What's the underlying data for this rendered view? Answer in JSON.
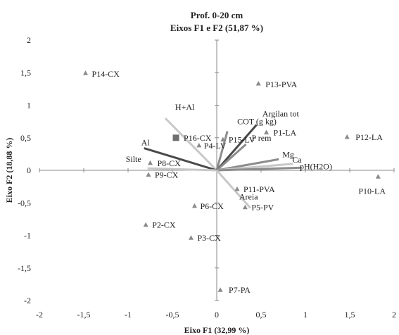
{
  "chart_data": {
    "type": "scatter",
    "title": "Prof. 0-20 cm",
    "subtitle": "Eixos F1 e F2 (51,87 %)",
    "xlabel": "Eixo F1 (32,99 %)",
    "ylabel": "Eixo F2 (18,88 %)",
    "xlim": [
      -2,
      2
    ],
    "ylim": [
      -2,
      2
    ],
    "xticks": [
      -2,
      -1.5,
      -1,
      -0.5,
      0,
      0.5,
      1,
      1.5,
      2
    ],
    "xtick_labels": [
      "-2",
      "-1,5",
      "-1",
      "-0,5",
      "0",
      "0,5",
      "1",
      "1,5",
      "2"
    ],
    "yticks": [
      -2,
      -1.5,
      -1,
      -0.5,
      0,
      0.5,
      1,
      1.5,
      2
    ],
    "ytick_labels": [
      "-2",
      "-1,5",
      "-1",
      "-0,5",
      "0",
      "0,5",
      "1",
      "1,5",
      "2"
    ],
    "grid": false,
    "points": [
      {
        "label": "P14-CX",
        "x": -1.48,
        "y": 1.49
      },
      {
        "label": "P13-PVA",
        "x": 0.47,
        "y": 1.33
      },
      {
        "label": "P1-LA",
        "x": 0.56,
        "y": 0.58
      },
      {
        "label": "P12-LA",
        "x": 1.47,
        "y": 0.51
      },
      {
        "label": "P16-CX",
        "x": -0.46,
        "y": 0.5,
        "marker": "square"
      },
      {
        "label": "P15-LV",
        "x": 0.07,
        "y": 0.47
      },
      {
        "label": "P4-LV",
        "x": -0.2,
        "y": 0.38
      },
      {
        "label": "P8-CX",
        "x": -0.75,
        "y": 0.11
      },
      {
        "label": "P9-CX",
        "x": -0.77,
        "y": -0.07
      },
      {
        "label": "P10-LA",
        "x": 1.82,
        "y": -0.1
      },
      {
        "label": "P11-PVA",
        "x": 0.23,
        "y": -0.29
      },
      {
        "label": "P6-CX",
        "x": -0.25,
        "y": -0.55
      },
      {
        "label": "P5-PV",
        "x": 0.32,
        "y": -0.57
      },
      {
        "label": "P2-CX",
        "x": -0.8,
        "y": -0.84
      },
      {
        "label": "P3-CX",
        "x": -0.29,
        "y": -1.04
      },
      {
        "label": "P7-PA",
        "x": 0.04,
        "y": -1.84
      }
    ],
    "vectors": [
      {
        "label": "H+Al",
        "x": -0.58,
        "y": 0.8,
        "color": "#c8c8c8"
      },
      {
        "label": "Al",
        "x": -0.82,
        "y": 0.34,
        "color": "#4a4a4a"
      },
      {
        "label": "Silte",
        "x": -0.78,
        "y": 0.03,
        "color": "#c8c8c8"
      },
      {
        "label": "COT (g kg)",
        "x": 0.12,
        "y": 0.6,
        "color": "#8c8c8c"
      },
      {
        "label": "Argilan tot",
        "x": 0.45,
        "y": 0.7,
        "color": "#4a4a4a"
      },
      {
        "label": "P rem",
        "x": 0.33,
        "y": 0.4,
        "color": "#8c8c8c"
      },
      {
        "label": "Mg",
        "x": 0.7,
        "y": 0.17,
        "color": "#8c8c8c"
      },
      {
        "label": "Ca",
        "x": 0.86,
        "y": 0.1,
        "color": "#c8c8c8"
      },
      {
        "label": "pH(H2O)",
        "x": 0.96,
        "y": 0.04,
        "color": "#8c8c8c"
      },
      {
        "label": "Areia",
        "x": 0.38,
        "y": -0.58,
        "color": "#c8c8c8"
      }
    ]
  }
}
